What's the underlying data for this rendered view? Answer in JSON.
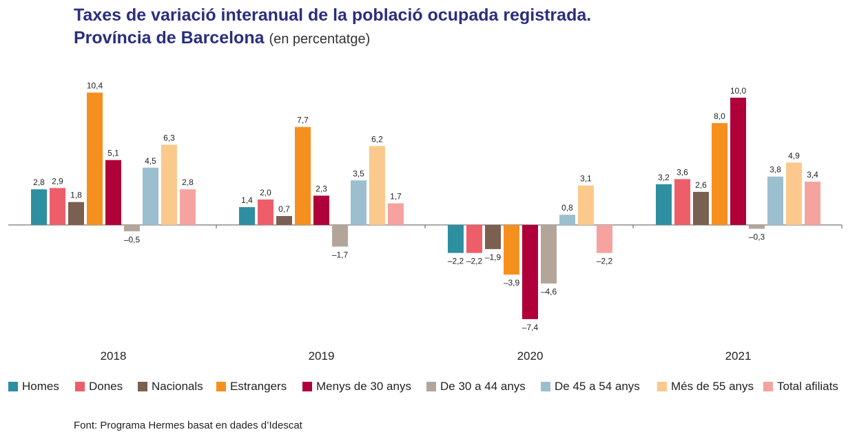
{
  "chart_data": {
    "type": "bar",
    "title": "Taxes de variació interanual de la població ocupada registrada.",
    "title_line2": "Província de Barcelona",
    "subtitle": "(en percentatge)",
    "categories": [
      "2018",
      "2019",
      "2020",
      "2021"
    ],
    "series": [
      {
        "name": "Homes",
        "color": "#2e8fa1",
        "values": [
          2.8,
          1.4,
          -2.2,
          3.2
        ],
        "labels": [
          "2,8",
          "1,4",
          "–2,2",
          "3,2"
        ]
      },
      {
        "name": "Dones",
        "color": "#ee5e6a",
        "values": [
          2.9,
          2.0,
          -2.2,
          3.6
        ],
        "labels": [
          "2,9",
          "2,0",
          "–2,2",
          "3,6"
        ]
      },
      {
        "name": "Nacionals",
        "color": "#7a6050",
        "values": [
          1.8,
          0.7,
          -1.9,
          2.6
        ],
        "labels": [
          "1,8",
          "0,7",
          "–1,9",
          "2,6"
        ]
      },
      {
        "name": "Estrangers",
        "color": "#f5901f",
        "values": [
          10.4,
          7.7,
          -3.9,
          8.0
        ],
        "labels": [
          "10,4",
          "7,7",
          "–3,9",
          "8,0"
        ]
      },
      {
        "name": "Menys de 30 anys",
        "color": "#b0003a",
        "values": [
          5.1,
          2.3,
          -7.4,
          10.0
        ],
        "labels": [
          "5,1",
          "2,3",
          "–7,4",
          "10,0"
        ]
      },
      {
        "name": "De 30 a 44 anys",
        "color": "#b3a59a",
        "values": [
          -0.5,
          -1.7,
          -4.6,
          -0.3
        ],
        "labels": [
          "–0,5",
          "–1,7",
          "–4,6",
          "–0,3"
        ]
      },
      {
        "name": "De 45 a 54 anys",
        "color": "#9cbfcf",
        "values": [
          4.5,
          3.5,
          0.8,
          3.8
        ],
        "labels": [
          "4,5",
          "3,5",
          "0,8",
          "3,8"
        ]
      },
      {
        "name": "Més de 55 anys",
        "color": "#fbc98b",
        "values": [
          6.3,
          6.2,
          3.1,
          4.9
        ],
        "labels": [
          "6,3",
          "6,2",
          "3,1",
          "4,9"
        ]
      },
      {
        "name": "Total afiliats",
        "color": "#f6a3a0",
        "values": [
          2.8,
          1.7,
          -2.2,
          3.4
        ],
        "labels": [
          "2,8",
          "1,7",
          "–2,2",
          "3,4"
        ]
      }
    ],
    "ylim": [
      -7.4,
      10.4
    ],
    "grid": false,
    "legend_position": "bottom"
  },
  "source": "Font: Programa Hermes basat en dades d’Idescat"
}
